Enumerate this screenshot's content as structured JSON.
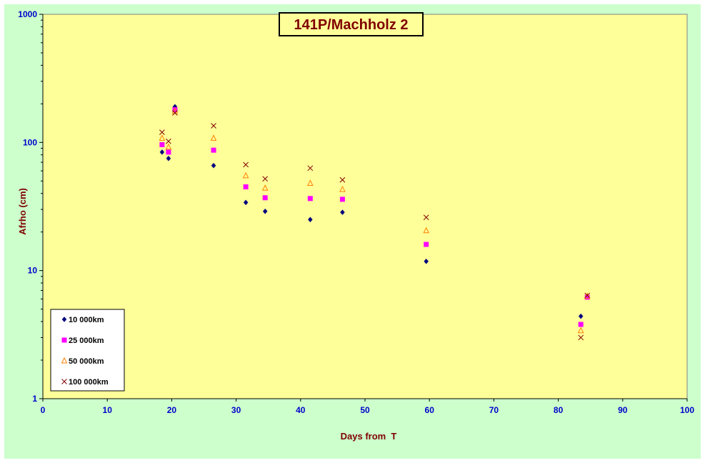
{
  "chart_data": {
    "type": "scatter",
    "title": "141P/Machholz 2",
    "xlabel": "Days from  T",
    "ylabel": "Afrho (cm)",
    "xlim": [
      0,
      100
    ],
    "ylim": [
      1,
      1000
    ],
    "yscale": "log",
    "x_ticks": [
      "0",
      "10",
      "20",
      "30",
      "40",
      "50",
      "60",
      "70",
      "80",
      "90",
      "100"
    ],
    "y_ticks": [
      "1",
      "10",
      "100",
      "1000"
    ],
    "grid": false,
    "legend_position": "bottom-left",
    "series": [
      {
        "name": "10 000km",
        "marker": "diamond",
        "color": "#000080",
        "points": [
          [
            18.5,
            84
          ],
          [
            19.5,
            75
          ],
          [
            20.5,
            190
          ],
          [
            26.5,
            66
          ],
          [
            31.5,
            34
          ],
          [
            34.5,
            29
          ],
          [
            41.5,
            25
          ],
          [
            46.5,
            28.5
          ],
          [
            59.5,
            11.8
          ],
          [
            83.5,
            4.4
          ],
          [
            84.5,
            6.3
          ]
        ]
      },
      {
        "name": "25 000km",
        "marker": "square",
        "color": "#ff00ff",
        "points": [
          [
            18.5,
            96
          ],
          [
            19.5,
            84
          ],
          [
            20.5,
            180
          ],
          [
            26.5,
            87
          ],
          [
            31.5,
            45
          ],
          [
            34.5,
            37
          ],
          [
            41.5,
            36.5
          ],
          [
            46.5,
            36
          ],
          [
            59.5,
            16
          ],
          [
            83.5,
            3.8
          ],
          [
            84.5,
            6.2
          ]
        ]
      },
      {
        "name": "50 000km",
        "marker": "triangle",
        "color": "#ff8000",
        "points": [
          [
            18.5,
            108
          ],
          [
            19.5,
            92
          ],
          [
            20.5,
            175
          ],
          [
            26.5,
            108
          ],
          [
            31.5,
            55
          ],
          [
            34.5,
            44
          ],
          [
            41.5,
            48
          ],
          [
            46.5,
            43
          ],
          [
            59.5,
            20.5
          ],
          [
            83.5,
            3.4
          ],
          [
            84.5,
            6.3
          ]
        ]
      },
      {
        "name": "100 000km",
        "marker": "x",
        "color": "#800000",
        "points": [
          [
            18.5,
            120
          ],
          [
            19.5,
            102
          ],
          [
            20.5,
            170
          ],
          [
            26.5,
            135
          ],
          [
            31.5,
            67
          ],
          [
            34.5,
            52
          ],
          [
            41.5,
            63
          ],
          [
            46.5,
            51
          ],
          [
            59.5,
            26
          ],
          [
            83.5,
            3.0
          ],
          [
            84.5,
            6.4
          ]
        ]
      }
    ],
    "colors": {
      "frame_background": "#ccffcc",
      "plot_background": "#ffff99",
      "tick_labels": "#0000cc",
      "titles": "#800000"
    }
  }
}
